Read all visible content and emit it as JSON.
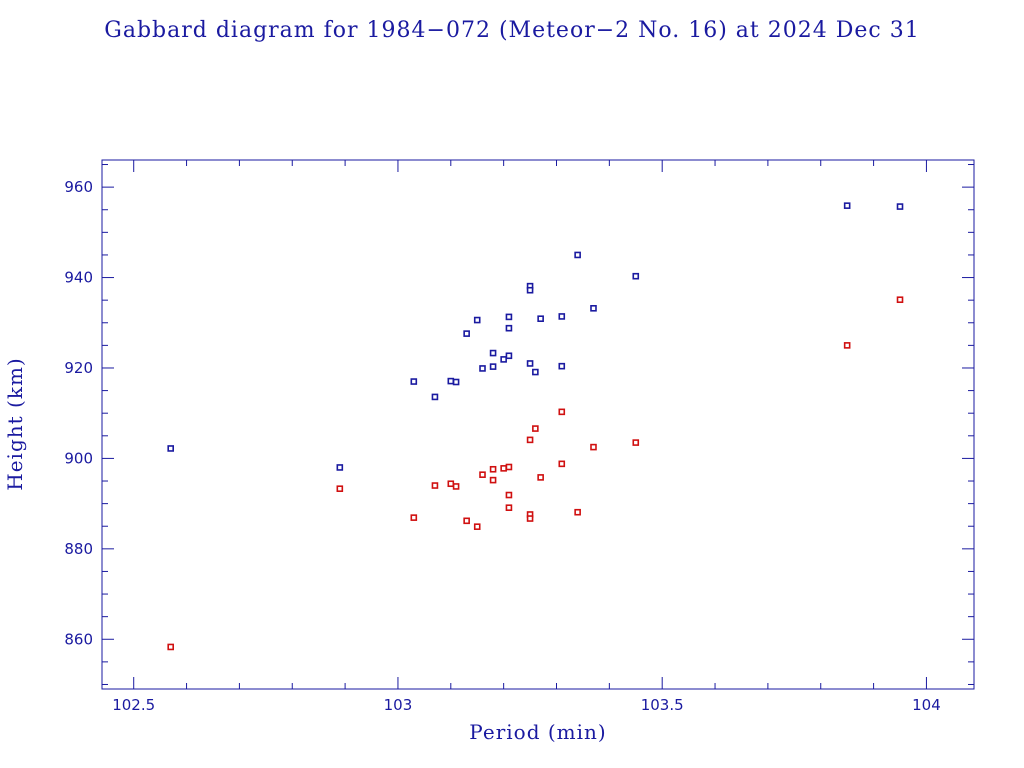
{
  "chart_data": {
    "type": "scatter",
    "title": "Gabbard diagram for 1984−072 (Meteor−2 No. 16) at 2024 Dec 31",
    "xlabel": "Period (min)",
    "ylabel": "Height (km)",
    "xlim": [
      102.44,
      104.09
    ],
    "ylim": [
      849,
      966
    ],
    "x_ticks": [
      102.5,
      103,
      103.5,
      104
    ],
    "x_tick_labels": [
      "102.5",
      "103",
      "103.5",
      "104"
    ],
    "x_minor_step": 0.1,
    "y_ticks": [
      860,
      880,
      900,
      920,
      940,
      960
    ],
    "y_tick_labels": [
      "860",
      "880",
      "900",
      "920",
      "940",
      "960"
    ],
    "y_minor_step": 5,
    "grid": false,
    "legend": "none",
    "series": [
      {
        "color": "#1a1aa0",
        "points": [
          [
            102.57,
            902.2
          ],
          [
            102.89,
            898.0
          ],
          [
            103.03,
            917.0
          ],
          [
            103.07,
            913.6
          ],
          [
            103.1,
            917.1
          ],
          [
            103.11,
            916.9
          ],
          [
            103.13,
            927.6
          ],
          [
            103.15,
            930.6
          ],
          [
            103.16,
            919.9
          ],
          [
            103.18,
            920.3
          ],
          [
            103.18,
            923.3
          ],
          [
            103.2,
            921.9
          ],
          [
            103.21,
            922.7
          ],
          [
            103.21,
            931.3
          ],
          [
            103.21,
            928.8
          ],
          [
            103.25,
            938.1
          ],
          [
            103.25,
            937.2
          ],
          [
            103.25,
            921.0
          ],
          [
            103.26,
            919.1
          ],
          [
            103.27,
            930.9
          ],
          [
            103.31,
            931.4
          ],
          [
            103.31,
            920.4
          ],
          [
            103.34,
            945.0
          ],
          [
            103.37,
            933.2
          ],
          [
            103.45,
            940.3
          ],
          [
            103.85,
            955.9
          ],
          [
            103.95,
            955.7
          ]
        ]
      },
      {
        "color": "#d01010",
        "points": [
          [
            102.57,
            858.3
          ],
          [
            102.89,
            893.3
          ],
          [
            103.03,
            886.9
          ],
          [
            103.07,
            894.0
          ],
          [
            103.1,
            894.4
          ],
          [
            103.11,
            893.8
          ],
          [
            103.13,
            886.2
          ],
          [
            103.15,
            884.9
          ],
          [
            103.16,
            896.4
          ],
          [
            103.18,
            897.6
          ],
          [
            103.18,
            895.2
          ],
          [
            103.2,
            897.8
          ],
          [
            103.21,
            898.1
          ],
          [
            103.21,
            891.9
          ],
          [
            103.21,
            889.1
          ],
          [
            103.25,
            887.6
          ],
          [
            103.25,
            886.7
          ],
          [
            103.25,
            904.1
          ],
          [
            103.26,
            906.6
          ],
          [
            103.27,
            895.8
          ],
          [
            103.31,
            898.8
          ],
          [
            103.31,
            910.3
          ],
          [
            103.34,
            888.1
          ],
          [
            103.37,
            902.5
          ],
          [
            103.45,
            903.5
          ],
          [
            103.85,
            925.0
          ],
          [
            103.95,
            935.1
          ]
        ]
      }
    ]
  }
}
